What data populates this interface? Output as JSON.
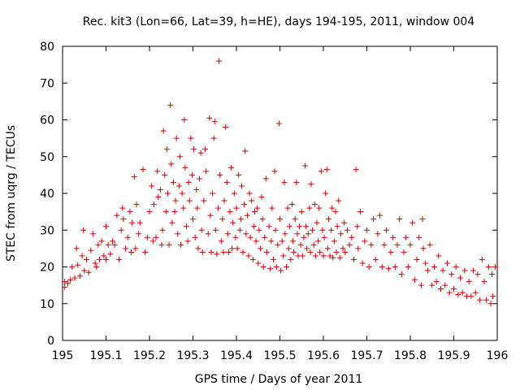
{
  "chart_data": {
    "type": "scatter",
    "title": "Rec. kit3 (Lon=66, Lat=39, h=HE), days 194-195, 2011, window 004",
    "xlabel": "GPS time / Days of year 2011",
    "ylabel": "STEC from uqrg / TECUs",
    "xlim": [
      195,
      196
    ],
    "ylim": [
      0,
      80
    ],
    "x_ticks": [
      "195",
      "195.1",
      "195.2",
      "195.3",
      "195.4",
      "195.5",
      "195.6",
      "195.7",
      "195.8",
      "195.9",
      "196"
    ],
    "y_ticks": [
      "0",
      "10",
      "20",
      "30",
      "40",
      "50",
      "60",
      "70",
      "80"
    ],
    "grid": false,
    "marker": "plus",
    "color": "#cc0000",
    "series": [
      {
        "points": [
          [
            195.005,
            14.5
          ],
          [
            195.005,
            16
          ],
          [
            195.012,
            15.5
          ],
          [
            195.018,
            16.5
          ],
          [
            195.022,
            20
          ],
          [
            195.028,
            17
          ],
          [
            195.032,
            25
          ],
          [
            195.035,
            20.5
          ],
          [
            195.04,
            17.5
          ],
          [
            195.045,
            23
          ],
          [
            195.048,
            30
          ],
          [
            195.05,
            19
          ],
          [
            195.055,
            22
          ],
          [
            195.06,
            18.5
          ],
          [
            195.065,
            24.5
          ],
          [
            195.07,
            29
          ],
          [
            195.075,
            21
          ],
          [
            195.078,
            20
          ],
          [
            195.082,
            26
          ],
          [
            195.085,
            22
          ],
          [
            195.09,
            27
          ],
          [
            195.095,
            23
          ],
          [
            195.1,
            31
          ],
          [
            195.1,
            22
          ],
          [
            195.105,
            26
          ],
          [
            195.11,
            23.5
          ],
          [
            195.115,
            27
          ],
          [
            195.12,
            26
          ],
          [
            195.125,
            34
          ],
          [
            195.13,
            22
          ],
          [
            195.135,
            30
          ],
          [
            195.138,
            36
          ],
          [
            195.14,
            33
          ],
          [
            195.145,
            25
          ],
          [
            195.15,
            28
          ],
          [
            195.155,
            35
          ],
          [
            195.158,
            24
          ],
          [
            195.16,
            32
          ],
          [
            195.165,
            44.5
          ],
          [
            195.168,
            25
          ],
          [
            195.17,
            37
          ],
          [
            195.175,
            29
          ],
          [
            195.178,
            32
          ],
          [
            195.185,
            46.5
          ],
          [
            195.19,
            24
          ],
          [
            195.195,
            28
          ],
          [
            195.2,
            35
          ],
          [
            195.205,
            42
          ],
          [
            195.208,
            27
          ],
          [
            195.21,
            37
          ],
          [
            195.215,
            28
          ],
          [
            195.218,
            46
          ],
          [
            195.22,
            39
          ],
          [
            195.225,
            41
          ],
          [
            195.228,
            26
          ],
          [
            195.23,
            30
          ],
          [
            195.232,
            57
          ],
          [
            195.235,
            45
          ],
          [
            195.238,
            35
          ],
          [
            195.24,
            52
          ],
          [
            195.242,
            40
          ],
          [
            195.245,
            26
          ],
          [
            195.248,
            64
          ],
          [
            195.25,
            48
          ],
          [
            195.252,
            32
          ],
          [
            195.255,
            43
          ],
          [
            195.258,
            35
          ],
          [
            195.26,
            38
          ],
          [
            195.262,
            55
          ],
          [
            195.265,
            29
          ],
          [
            195.268,
            42
          ],
          [
            195.27,
            50
          ],
          [
            195.272,
            26
          ],
          [
            195.275,
            40
          ],
          [
            195.278,
            36
          ],
          [
            195.28,
            60
          ],
          [
            195.282,
            47
          ],
          [
            195.285,
            31
          ],
          [
            195.288,
            27
          ],
          [
            195.29,
            43
          ],
          [
            195.292,
            38
          ],
          [
            195.295,
            55
          ],
          [
            195.298,
            45
          ],
          [
            195.3,
            33
          ],
          [
            195.302,
            52
          ],
          [
            195.305,
            28
          ],
          [
            195.308,
            41
          ],
          [
            195.31,
            36
          ],
          [
            195.312,
            25
          ],
          [
            195.315,
            44
          ],
          [
            195.318,
            51
          ],
          [
            195.32,
            30
          ],
          [
            195.322,
            24
          ],
          [
            195.325,
            38
          ],
          [
            195.328,
            52
          ],
          [
            195.33,
            46
          ],
          [
            195.335,
            29
          ],
          [
            195.338,
            60.5
          ],
          [
            195.34,
            34
          ],
          [
            195.342,
            24
          ],
          [
            195.345,
            40
          ],
          [
            195.348,
            55
          ],
          [
            195.35,
            59.5
          ],
          [
            195.352,
            30
          ],
          [
            195.355,
            23.5
          ],
          [
            195.358,
            36
          ],
          [
            195.36,
            76
          ],
          [
            195.362,
            45
          ],
          [
            195.365,
            27
          ],
          [
            195.368,
            33
          ],
          [
            195.37,
            24
          ],
          [
            195.372,
            38
          ],
          [
            195.375,
            58
          ],
          [
            195.378,
            43
          ],
          [
            195.38,
            29
          ],
          [
            195.382,
            24
          ],
          [
            195.385,
            35
          ],
          [
            195.388,
            47
          ],
          [
            195.39,
            25
          ],
          [
            195.392,
            32
          ],
          [
            195.395,
            40
          ],
          [
            195.398,
            28
          ],
          [
            195.4,
            36
          ],
          [
            195.402,
            25
          ],
          [
            195.405,
            45
          ],
          [
            195.408,
            30
          ],
          [
            195.41,
            33
          ],
          [
            195.412,
            42
          ],
          [
            195.415,
            24
          ],
          [
            195.418,
            37
          ],
          [
            195.42,
            51.5
          ],
          [
            195.422,
            29
          ],
          [
            195.425,
            34
          ],
          [
            195.428,
            23
          ],
          [
            195.43,
            40
          ],
          [
            195.432,
            28
          ],
          [
            195.435,
            38
          ],
          [
            195.438,
            22
          ],
          [
            195.44,
            31
          ],
          [
            195.442,
            35
          ],
          [
            195.445,
            27
          ],
          [
            195.448,
            36
          ],
          [
            195.45,
            21
          ],
          [
            195.452,
            30
          ],
          [
            195.455,
            25
          ],
          [
            195.458,
            39
          ],
          [
            195.46,
            33
          ],
          [
            195.462,
            20
          ],
          [
            195.465,
            28
          ],
          [
            195.468,
            44
          ],
          [
            195.47,
            24
          ],
          [
            195.475,
            31
          ],
          [
            195.478,
            19.5
          ],
          [
            195.48,
            27
          ],
          [
            195.482,
            36
          ],
          [
            195.485,
            22
          ],
          [
            195.488,
            46
          ],
          [
            195.49,
            30
          ],
          [
            195.492,
            20
          ],
          [
            195.495,
            26
          ],
          [
            195.498,
            59
          ],
          [
            195.5,
            33
          ],
          [
            195.502,
            19
          ],
          [
            195.505,
            27
          ],
          [
            195.508,
            23
          ],
          [
            195.51,
            43
          ],
          [
            195.512,
            29
          ],
          [
            195.515,
            20
          ],
          [
            195.518,
            36
          ],
          [
            195.52,
            25
          ],
          [
            195.522,
            31
          ],
          [
            195.525,
            22
          ],
          [
            195.528,
            37
          ],
          [
            195.53,
            27
          ],
          [
            195.532,
            24
          ],
          [
            195.535,
            33
          ],
          [
            195.538,
            43
          ],
          [
            195.54,
            29
          ],
          [
            195.542,
            23
          ],
          [
            195.545,
            31
          ],
          [
            195.548,
            26
          ],
          [
            195.55,
            35
          ],
          [
            195.552,
            23
          ],
          [
            195.555,
            28
          ],
          [
            195.558,
            47.5
          ],
          [
            195.56,
            31
          ],
          [
            195.562,
            25
          ],
          [
            195.565,
            29
          ],
          [
            195.568,
            36
          ],
          [
            195.57,
            24
          ],
          [
            195.572,
            42.5
          ],
          [
            195.575,
            30
          ],
          [
            195.578,
            26
          ],
          [
            195.58,
            37
          ],
          [
            195.582,
            23
          ],
          [
            195.585,
            32
          ],
          [
            195.588,
            27
          ],
          [
            195.59,
            36
          ],
          [
            195.592,
            24
          ],
          [
            195.595,
            46
          ],
          [
            195.598,
            30
          ],
          [
            195.6,
            23
          ],
          [
            195.602,
            28
          ],
          [
            195.605,
            40
          ],
          [
            195.608,
            46.5
          ],
          [
            195.61,
            25
          ],
          [
            195.612,
            33
          ],
          [
            195.615,
            23
          ],
          [
            195.618,
            30
          ],
          [
            195.62,
            36
          ],
          [
            195.622,
            22.5
          ],
          [
            195.625,
            27
          ],
          [
            195.628,
            35
          ],
          [
            195.63,
            24
          ],
          [
            195.632,
            31
          ],
          [
            195.635,
            38
          ],
          [
            195.638,
            22.5
          ],
          [
            195.64,
            29
          ],
          [
            195.645,
            25
          ],
          [
            195.648,
            32
          ],
          [
            195.65,
            24
          ],
          [
            195.655,
            30
          ],
          [
            195.66,
            26
          ],
          [
            195.665,
            28
          ],
          [
            195.67,
            22
          ],
          [
            195.675,
            46.5
          ],
          [
            195.678,
            31
          ],
          [
            195.68,
            25
          ],
          [
            195.685,
            35
          ],
          [
            195.69,
            21
          ],
          [
            195.695,
            27
          ],
          [
            195.7,
            30
          ],
          [
            195.705,
            20
          ],
          [
            195.71,
            26
          ],
          [
            195.715,
            33
          ],
          [
            195.72,
            22
          ],
          [
            195.725,
            29
          ],
          [
            195.73,
            34
          ],
          [
            195.735,
            20
          ],
          [
            195.74,
            26
          ],
          [
            195.745,
            30
          ],
          [
            195.75,
            19.5
          ],
          [
            195.755,
            24
          ],
          [
            195.76,
            28
          ],
          [
            195.765,
            20
          ],
          [
            195.77,
            26
          ],
          [
            195.775,
            33
          ],
          [
            195.78,
            18
          ],
          [
            195.785,
            24
          ],
          [
            195.79,
            28
          ],
          [
            195.795,
            20
          ],
          [
            195.8,
            26
          ],
          [
            195.805,
            32
          ],
          [
            195.81,
            16.5
          ],
          [
            195.815,
            22
          ],
          [
            195.82,
            28
          ],
          [
            195.825,
            15
          ],
          [
            195.828,
            33
          ],
          [
            195.83,
            25
          ],
          [
            195.835,
            21
          ],
          [
            195.84,
            19
          ],
          [
            195.845,
            26
          ],
          [
            195.85,
            15
          ],
          [
            195.855,
            20
          ],
          [
            195.86,
            16
          ],
          [
            195.865,
            23
          ],
          [
            195.87,
            14
          ],
          [
            195.875,
            19
          ],
          [
            195.88,
            15
          ],
          [
            195.885,
            21
          ],
          [
            195.89,
            13
          ],
          [
            195.895,
            18
          ],
          [
            195.9,
            14
          ],
          [
            195.905,
            20
          ],
          [
            195.91,
            12.5
          ],
          [
            195.915,
            17
          ],
          [
            195.92,
            13
          ],
          [
            195.925,
            19
          ],
          [
            195.93,
            12
          ],
          [
            195.935,
            16
          ],
          [
            195.94,
            12
          ],
          [
            195.945,
            19
          ],
          [
            195.95,
            13
          ],
          [
            195.955,
            18
          ],
          [
            195.96,
            11
          ],
          [
            195.965,
            22
          ],
          [
            195.97,
            16
          ],
          [
            195.975,
            11
          ],
          [
            195.98,
            20
          ],
          [
            195.985,
            10
          ],
          [
            195.988,
            18
          ],
          [
            195.99,
            12
          ],
          [
            195.995,
            20
          ]
        ]
      }
    ]
  }
}
